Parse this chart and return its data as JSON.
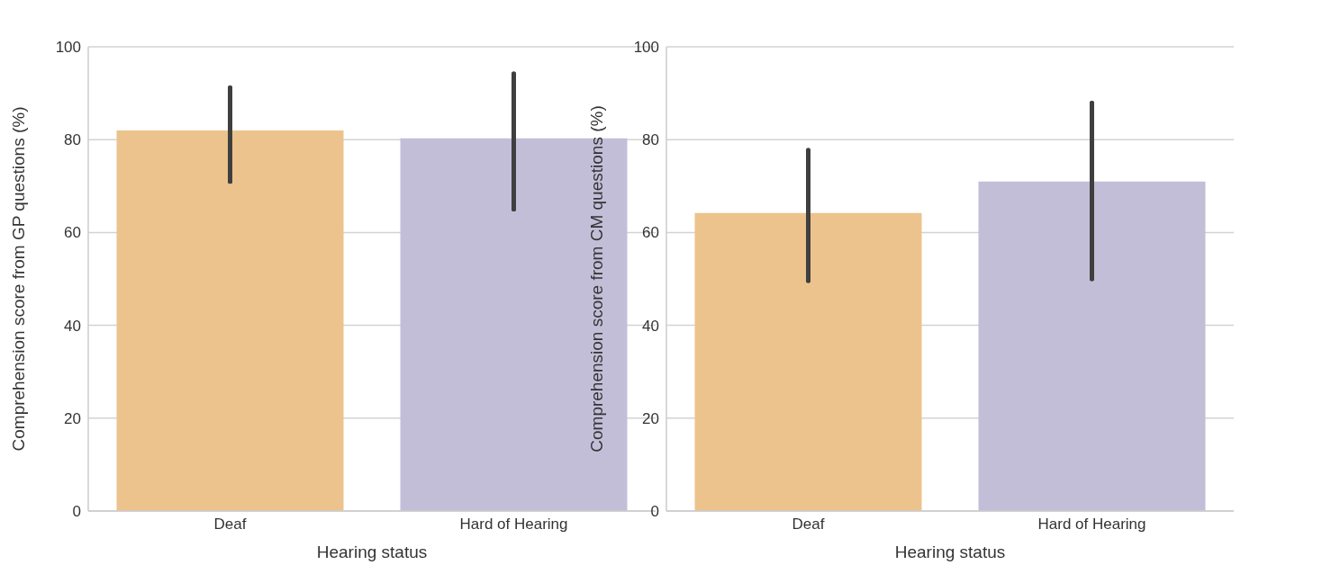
{
  "chart_data": [
    {
      "type": "bar",
      "categories": [
        "Deaf",
        "Hard of Hearing"
      ],
      "values": [
        82.0,
        80.3
      ],
      "colors": [
        "#ecc38c",
        "#c3bed8"
      ],
      "errors": [
        [
          71.0,
          91.2
        ],
        [
          65.0,
          94.2
        ]
      ],
      "xlabel": "Hearing status",
      "ylabel": "Comprehension score from GP questions (%)",
      "ylim": [
        0,
        100
      ],
      "yticks": [
        0,
        20,
        40,
        60,
        80,
        100
      ],
      "grid": "y"
    },
    {
      "type": "bar",
      "categories": [
        "Deaf",
        "Hard of Hearing"
      ],
      "values": [
        64.2,
        71.0
      ],
      "colors": [
        "#ecc38c",
        "#c3bed8"
      ],
      "errors": [
        [
          49.6,
          77.7
        ],
        [
          50.0,
          87.9
        ]
      ],
      "xlabel": "Hearing status",
      "ylabel": "Comprehension score from CM questions (%)",
      "ylim": [
        0,
        100
      ],
      "yticks": [
        0,
        20,
        40,
        60,
        80,
        100
      ],
      "grid": "y"
    }
  ]
}
